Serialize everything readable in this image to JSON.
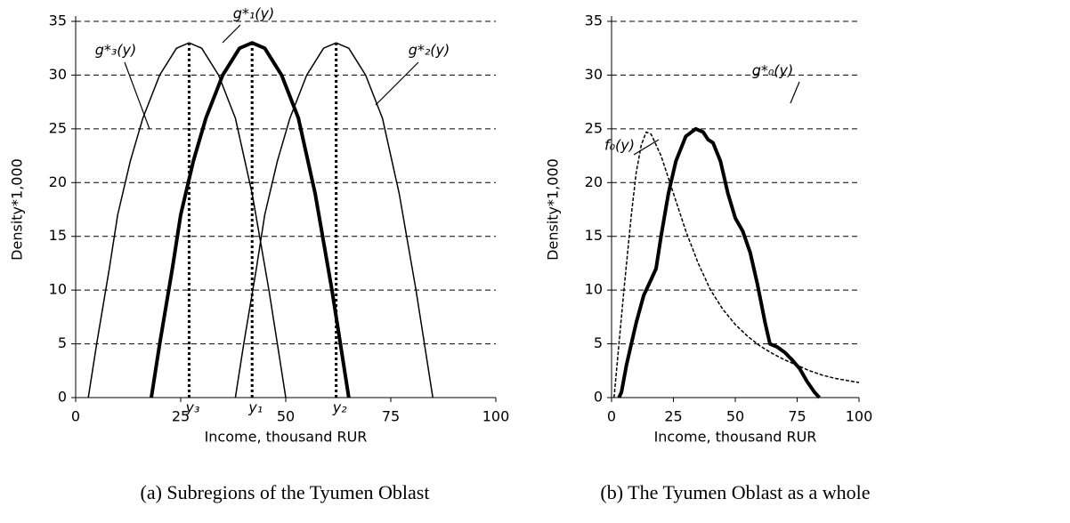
{
  "chart_data": [
    {
      "type": "line",
      "caption": "(a) Subregions of the Tyumen Oblast",
      "xlabel": "Income, thousand RUR",
      "ylabel": "Density*1,000",
      "xlim": [
        0,
        100
      ],
      "ylim": [
        0,
        35
      ],
      "xticks": [
        0,
        25,
        50,
        75,
        100
      ],
      "yticks": [
        0,
        5,
        10,
        15,
        20,
        25,
        30,
        35
      ],
      "grid": true,
      "series": [
        {
          "name": "g*₃(y)",
          "color": "#000000",
          "style": "thin",
          "x": [
            3,
            5,
            8,
            10,
            13,
            16,
            20,
            24,
            27,
            30,
            34,
            38,
            42,
            46,
            48,
            50
          ],
          "values": [
            0,
            5,
            12,
            17,
            22,
            26,
            30,
            32.5,
            33,
            32.5,
            30,
            26,
            19,
            10,
            5,
            0
          ]
        },
        {
          "name": "g*₁(y)",
          "color": "#000000",
          "style": "thick",
          "x": [
            18,
            20,
            23,
            25,
            28,
            31,
            35,
            39,
            42,
            45,
            49,
            53,
            57,
            61,
            63,
            65
          ],
          "values": [
            0,
            5,
            12,
            17,
            22,
            26,
            30,
            32.5,
            33,
            32.5,
            30,
            26,
            19,
            10,
            5,
            0
          ]
        },
        {
          "name": "g*₂(y)",
          "color": "#000000",
          "style": "thin",
          "x": [
            38,
            40,
            43,
            45,
            48,
            51,
            55,
            59,
            62,
            65,
            69,
            73,
            77,
            81,
            83,
            85
          ],
          "values": [
            0,
            5,
            12,
            17,
            22,
            26,
            30,
            32.5,
            33,
            32.5,
            30,
            26,
            19,
            10,
            5,
            0
          ]
        }
      ],
      "markers": [
        {
          "x": 27,
          "label": "y₃"
        },
        {
          "x": 42,
          "label": "y₁"
        },
        {
          "x": 62,
          "label": "y₂"
        }
      ]
    },
    {
      "type": "line",
      "caption": "(b) The Tyumen Oblast as a whole",
      "xlabel": "Income, thousand RUR",
      "ylabel": "Density*1,000",
      "xlim": [
        0,
        100
      ],
      "ylim": [
        0,
        35
      ],
      "xticks": [
        0,
        25,
        50,
        75,
        100
      ],
      "yticks": [
        0,
        5,
        10,
        15,
        20,
        25,
        30,
        35
      ],
      "grid": true,
      "series": [
        {
          "name": "f₀(y)",
          "color": "#000000",
          "style": "dashed",
          "x": [
            1,
            3,
            5,
            8,
            10,
            12,
            14,
            16,
            20,
            25,
            30,
            35,
            40,
            45,
            50,
            55,
            60,
            65,
            70,
            75,
            80,
            85,
            90,
            95,
            100
          ],
          "values": [
            0,
            5,
            10,
            17,
            21,
            23.5,
            24.7,
            24.5,
            22.5,
            19,
            15.5,
            12.5,
            10,
            8.2,
            6.8,
            5.7,
            4.8,
            4.1,
            3.5,
            3,
            2.5,
            2.1,
            1.8,
            1.6,
            1.4
          ]
        },
        {
          "name": "g*₀(y)",
          "color": "#000000",
          "style": "thick",
          "x": [
            3,
            4,
            6,
            8,
            10,
            13,
            16,
            18,
            20,
            23,
            26,
            30,
            34,
            37,
            39,
            41,
            44,
            47,
            50,
            53,
            56,
            59,
            62,
            64,
            67,
            70,
            73,
            76,
            79,
            82,
            84
          ],
          "values": [
            0,
            0.5,
            3,
            5,
            7,
            9.5,
            11,
            12,
            15,
            19,
            22,
            24.3,
            25,
            24.7,
            24,
            23.7,
            22,
            19,
            16.7,
            15.5,
            13.5,
            10.5,
            7,
            5,
            4.7,
            4.2,
            3.5,
            2.7,
            1.5,
            0.5,
            0
          ]
        }
      ]
    }
  ]
}
